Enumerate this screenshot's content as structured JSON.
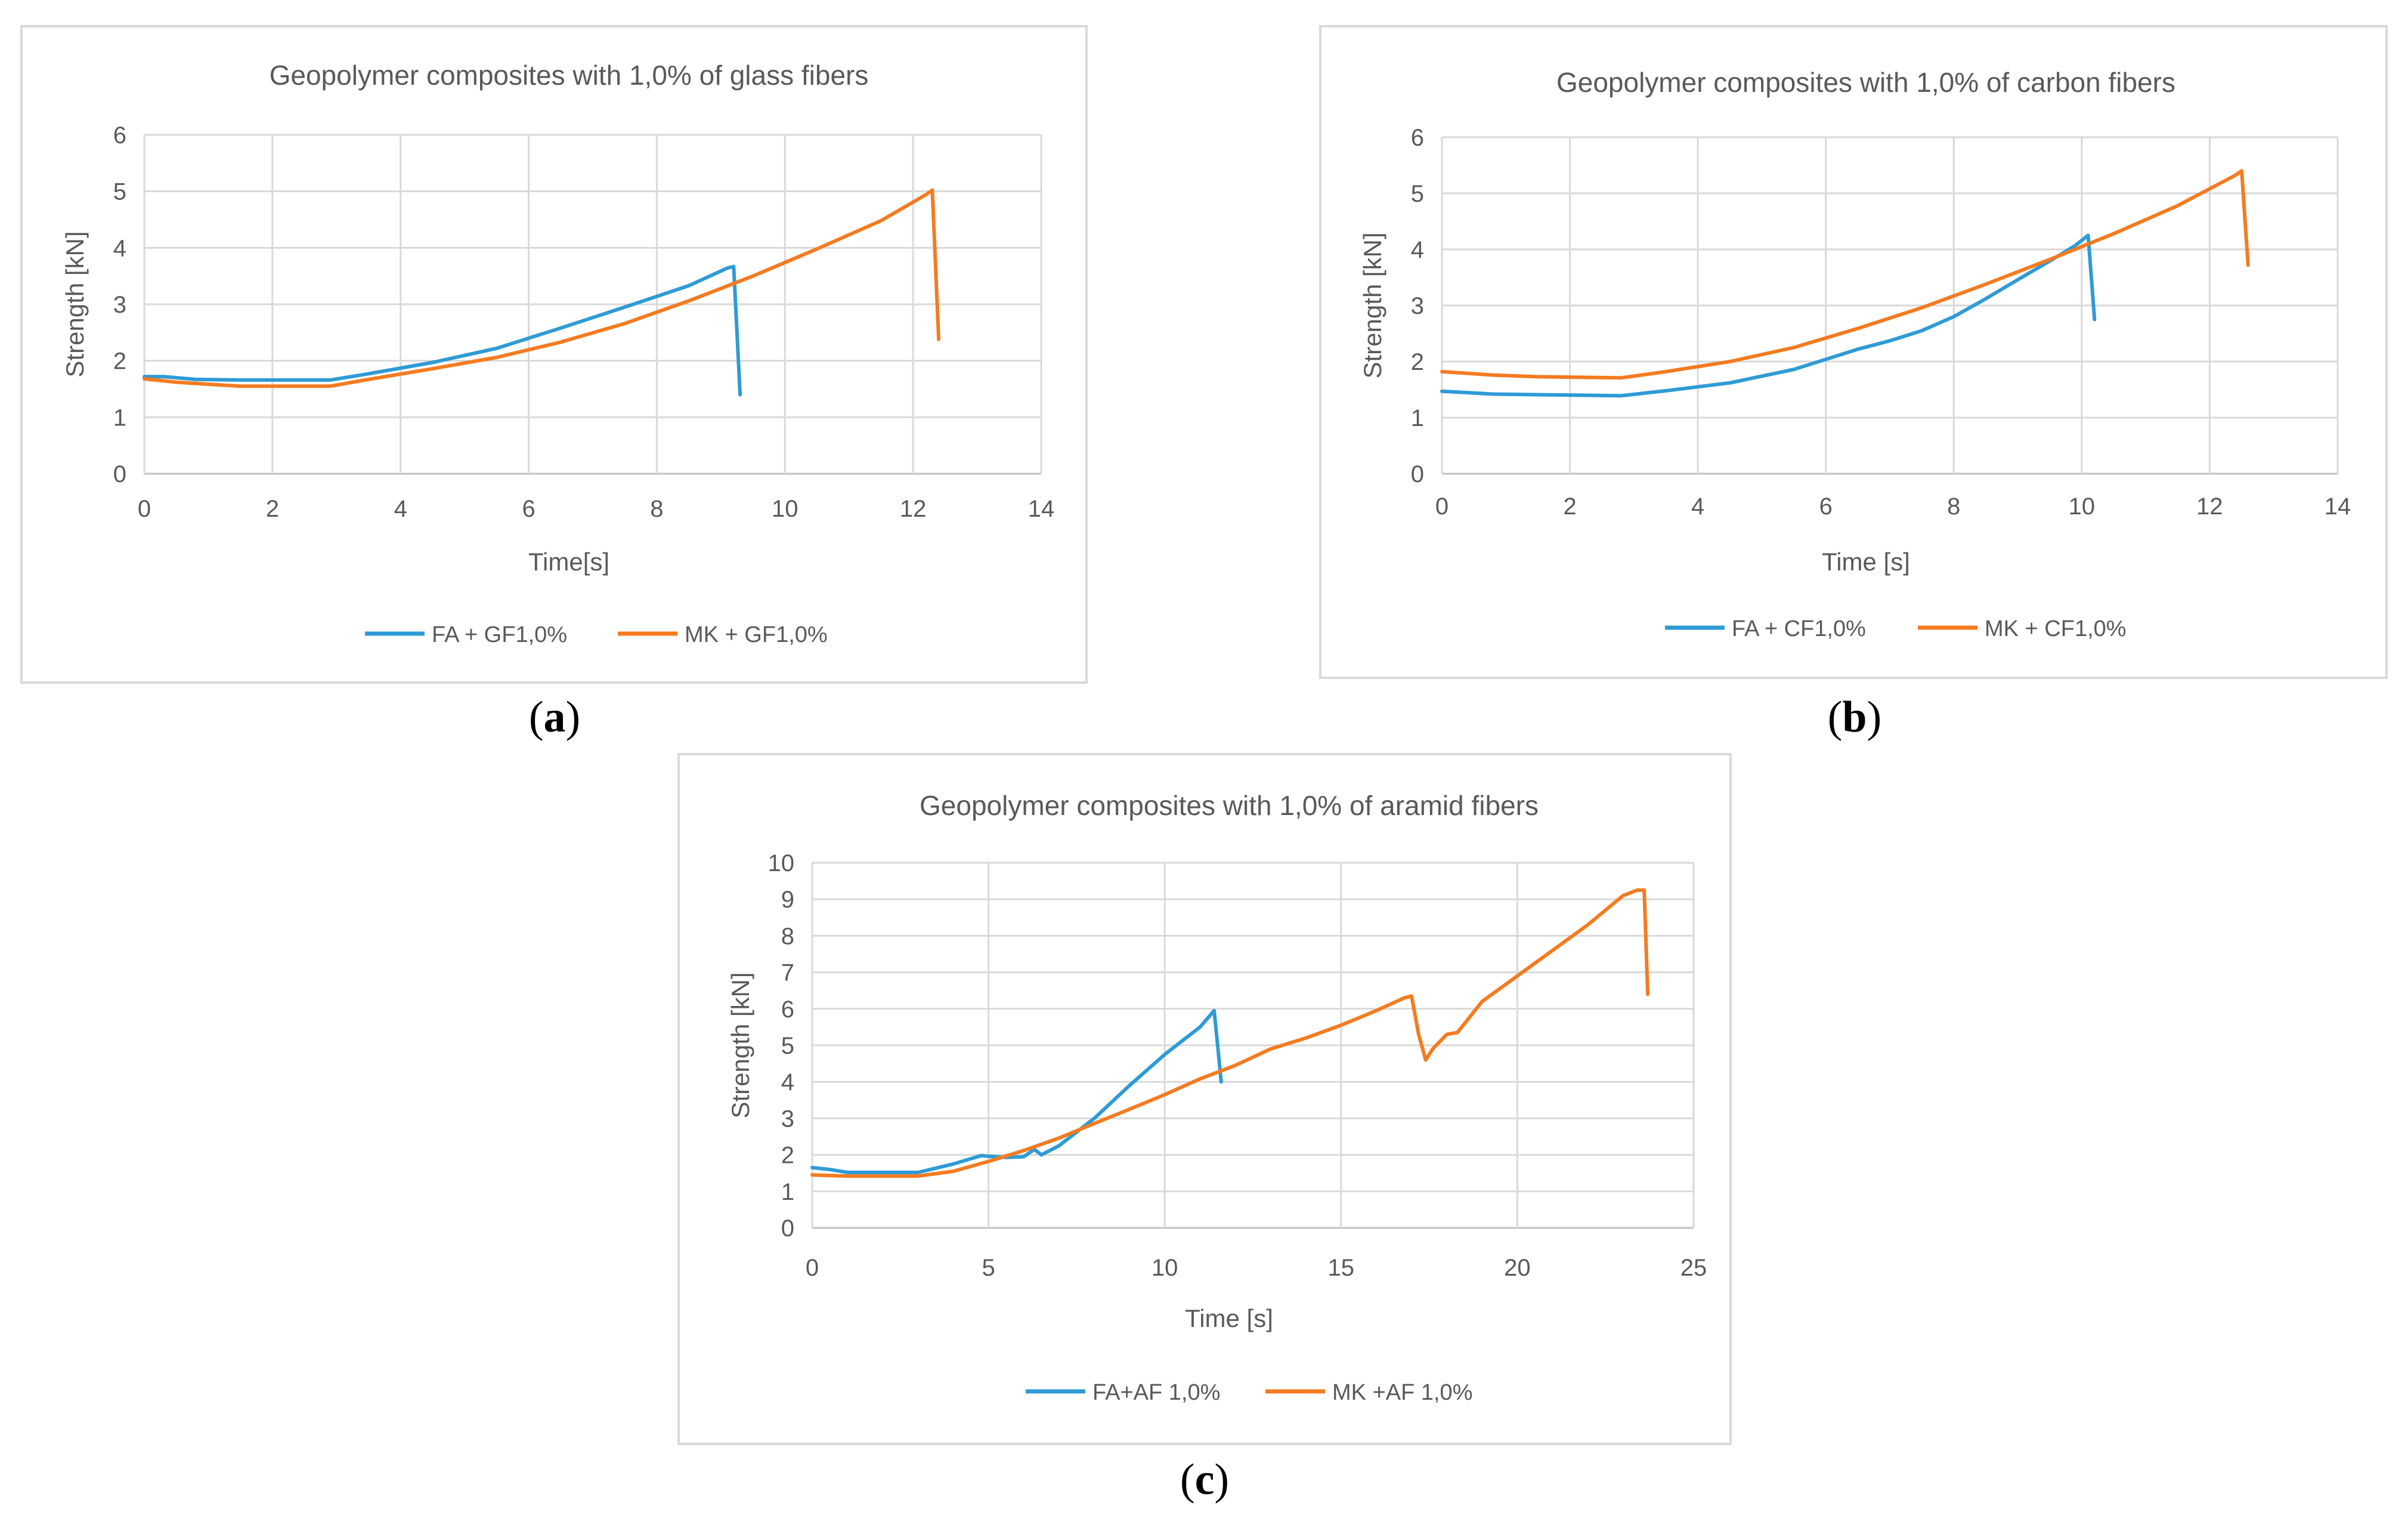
{
  "panels": [
    {
      "id": "a",
      "letter": "a"
    },
    {
      "id": "b",
      "letter": "b"
    },
    {
      "id": "c",
      "letter": "c"
    }
  ],
  "colors": {
    "fa": "#2e9bd6",
    "mk": "#f47b20",
    "grid": "#d9d9d9",
    "axis": "#bfbfbf",
    "text": "#595959"
  },
  "chart_data": [
    {
      "type": "line",
      "title": "Geopolymer composites with 1,0% of glass fibers",
      "xlabel": "Time[s]",
      "ylabel": "Strength [kN]",
      "xlim": [
        0,
        14
      ],
      "ylim": [
        0,
        6
      ],
      "xticks": [
        0,
        2,
        4,
        6,
        8,
        10,
        12,
        14
      ],
      "yticks": [
        0,
        1,
        2,
        3,
        4,
        5,
        6
      ],
      "grid": true,
      "legend": "bottom",
      "series": [
        {
          "name": "FA + GF1,0%",
          "color": "#2e9bd6",
          "x": [
            0,
            0.3,
            0.8,
            1.5,
            2.9,
            3.5,
            4.5,
            5.5,
            6.5,
            7.5,
            8.5,
            9.1,
            9.2,
            9.3
          ],
          "y": [
            1.72,
            1.72,
            1.67,
            1.66,
            1.66,
            1.77,
            1.97,
            2.22,
            2.58,
            2.95,
            3.33,
            3.64,
            3.67,
            1.4
          ]
        },
        {
          "name": "MK + GF1,0%",
          "color": "#f47b20",
          "x": [
            0,
            0.5,
            1.5,
            2.9,
            3.5,
            4.5,
            5.5,
            6.5,
            7.5,
            8.5,
            9.5,
            10.5,
            11.5,
            12.2,
            12.3,
            12.4
          ],
          "y": [
            1.68,
            1.62,
            1.55,
            1.55,
            1.67,
            1.86,
            2.06,
            2.33,
            2.66,
            3.06,
            3.5,
            3.98,
            4.48,
            4.94,
            5.02,
            2.38
          ]
        }
      ]
    },
    {
      "type": "line",
      "title": "Geopolymer composites with 1,0% of carbon fibers",
      "xlabel": "Time [s]",
      "ylabel": "Strength [kN]",
      "xlim": [
        0,
        14
      ],
      "ylim": [
        0,
        6
      ],
      "xticks": [
        0,
        2,
        4,
        6,
        8,
        10,
        12,
        14
      ],
      "yticks": [
        0,
        1,
        2,
        3,
        4,
        5,
        6
      ],
      "grid": true,
      "legend": "bottom",
      "series": [
        {
          "name": "FA + CF1,0%",
          "color": "#2e9bd6",
          "x": [
            0,
            0.8,
            1.5,
            2.8,
            3.5,
            4.5,
            5.5,
            6.5,
            7.0,
            7.5,
            8.0,
            8.5,
            9.0,
            9.6,
            9.9,
            10.1,
            10.15,
            10.2
          ],
          "y": [
            1.47,
            1.42,
            1.41,
            1.39,
            1.48,
            1.62,
            1.86,
            2.22,
            2.37,
            2.55,
            2.8,
            3.12,
            3.46,
            3.86,
            4.07,
            4.25,
            3.5,
            2.75
          ]
        },
        {
          "name": "MK + CF1,0%",
          "color": "#f47b20",
          "x": [
            0,
            0.8,
            1.5,
            2.8,
            3.5,
            4.5,
            5.5,
            6.5,
            7.5,
            8.5,
            9.5,
            10.5,
            11.5,
            12.4,
            12.5,
            12.6
          ],
          "y": [
            1.82,
            1.76,
            1.73,
            1.71,
            1.82,
            2.0,
            2.25,
            2.59,
            2.96,
            3.38,
            3.82,
            4.28,
            4.78,
            5.32,
            5.4,
            3.72
          ]
        }
      ]
    },
    {
      "type": "line",
      "title": "Geopolymer composites with 1,0% of aramid fibers",
      "xlabel": "Time [s]",
      "ylabel": "Strength [kN]",
      "xlim": [
        0,
        25
      ],
      "ylim": [
        0,
        10
      ],
      "xticks": [
        0,
        5,
        10,
        15,
        20,
        25
      ],
      "yticks": [
        0,
        1,
        2,
        3,
        4,
        5,
        6,
        7,
        8,
        9,
        10
      ],
      "grid": true,
      "legend": "bottom",
      "series": [
        {
          "name": "FA+AF 1,0%",
          "color": "#2e9bd6",
          "x": [
            0,
            0.5,
            1.0,
            3.0,
            4.0,
            4.8,
            5.0,
            5.5,
            6.0,
            6.3,
            6.5,
            7.0,
            8.0,
            9.0,
            10.0,
            11.0,
            11.4,
            11.5,
            11.6
          ],
          "y": [
            1.65,
            1.6,
            1.52,
            1.52,
            1.75,
            1.98,
            1.96,
            1.93,
            1.95,
            2.15,
            2.0,
            2.25,
            3.0,
            3.9,
            4.75,
            5.5,
            5.95,
            5.0,
            4.0
          ]
        },
        {
          "name": "MK +AF 1,0%",
          "color": "#f47b20",
          "x": [
            0,
            1.0,
            3.0,
            4.0,
            5.0,
            6.0,
            7.0,
            8.0,
            9.0,
            10.0,
            11.0,
            12.0,
            13.0,
            14.0,
            15.0,
            16.0,
            16.8,
            17.0,
            17.2,
            17.4,
            17.6,
            18.0,
            18.3,
            19.0,
            20.0,
            21.0,
            22.0,
            23.0,
            23.4,
            23.6,
            23.7
          ],
          "y": [
            1.45,
            1.42,
            1.42,
            1.55,
            1.82,
            2.12,
            2.46,
            2.86,
            3.25,
            3.65,
            4.08,
            4.45,
            4.9,
            5.2,
            5.55,
            5.95,
            6.3,
            6.35,
            5.3,
            4.6,
            4.9,
            5.3,
            5.35,
            6.2,
            6.9,
            7.6,
            8.3,
            9.1,
            9.25,
            9.25,
            6.4
          ]
        }
      ]
    }
  ]
}
